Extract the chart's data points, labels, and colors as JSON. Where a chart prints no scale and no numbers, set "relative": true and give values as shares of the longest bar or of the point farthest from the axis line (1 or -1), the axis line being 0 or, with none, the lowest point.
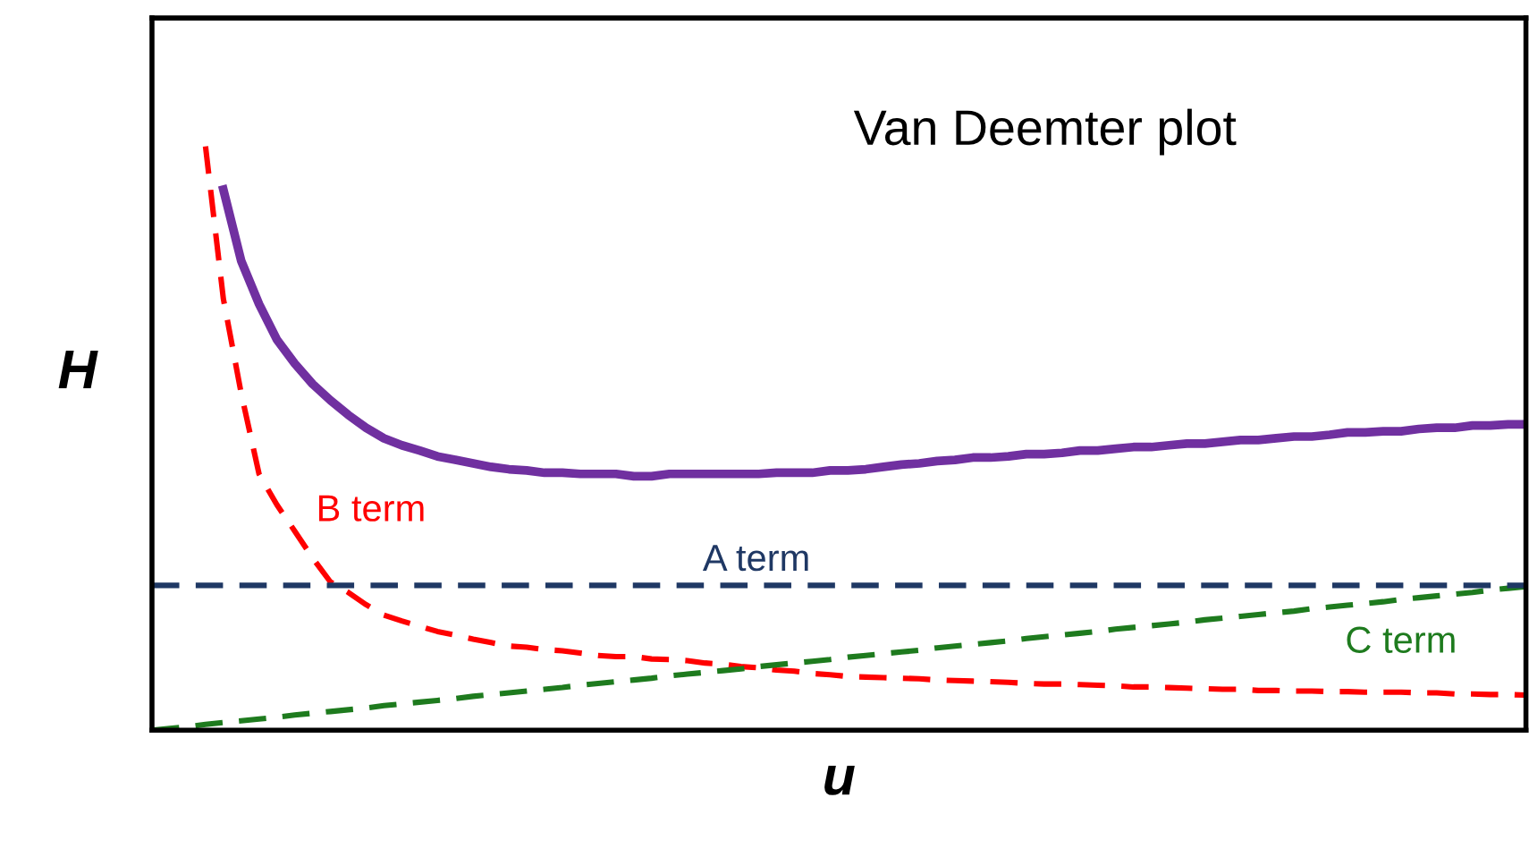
{
  "chart_data": {
    "type": "line",
    "title": "Van Deemter plot",
    "xlabel": "u",
    "ylabel": "H",
    "relative": true,
    "legend": false,
    "marker": "none",
    "categories": [
      null,
      null,
      null,
      null,
      null,
      null,
      null,
      null,
      null,
      null,
      null,
      null,
      null,
      null,
      null,
      null,
      null,
      null,
      null,
      null,
      null,
      null,
      null,
      null,
      null,
      null,
      null,
      null,
      null,
      null,
      null,
      null,
      null,
      null,
      null,
      null,
      null,
      null,
      null,
      null,
      null,
      null,
      null,
      null,
      null,
      null,
      null,
      null,
      null,
      null,
      null,
      null,
      null,
      null,
      null,
      null,
      null,
      null,
      null,
      null,
      null,
      null,
      null,
      null,
      null,
      null,
      null,
      null,
      null,
      null,
      null,
      null,
      null,
      null,
      null,
      null,
      null,
      null
    ],
    "series": [
      {
        "color": "#7030a0",
        "line_style": "solid",
        "values": [
          null,
          null,
          null,
          null,
          0.926,
          0.804,
          0.73,
          0.669,
          0.628,
          0.593,
          0.565,
          0.54,
          0.518,
          0.5,
          0.488,
          0.479,
          0.469,
          0.463,
          0.457,
          0.451,
          0.447,
          0.445,
          0.441,
          0.441,
          0.439,
          0.439,
          0.439,
          0.435,
          0.435,
          0.439,
          0.439,
          0.439,
          0.439,
          0.439,
          0.439,
          0.441,
          0.441,
          0.441,
          0.445,
          0.445,
          0.447,
          0.451,
          0.455,
          0.457,
          0.461,
          0.463,
          0.467,
          0.467,
          0.469,
          0.473,
          0.473,
          0.475,
          0.479,
          0.479,
          0.482,
          0.485,
          0.485,
          0.488,
          0.491,
          0.491,
          0.494,
          0.497,
          0.497,
          0.5,
          0.503,
          0.503,
          0.506,
          0.51,
          0.51,
          0.512,
          0.512,
          0.516,
          0.518,
          0.518,
          0.522,
          0.522,
          0.524,
          0.524
        ]
      },
      {
        "name": "B term",
        "color": "#ff0000",
        "line_style": "dashed",
        "values": [
          null,
          null,
          null,
          1,
          0.739,
          0.577,
          0.439,
          0.386,
          0.341,
          0.295,
          0.254,
          0.236,
          0.215,
          0.197,
          0.187,
          0.178,
          0.169,
          0.163,
          0.156,
          0.15,
          0.144,
          0.142,
          0.138,
          0.136,
          0.132,
          0.128,
          0.126,
          0.126,
          0.122,
          0.121,
          0.119,
          0.115,
          0.113,
          0.109,
          0.107,
          0.103,
          0.101,
          0.097,
          0.095,
          0.092,
          0.091,
          0.09,
          0.089,
          0.088,
          0.086,
          0.085,
          0.084,
          0.083,
          0.082,
          0.08,
          0.079,
          0.079,
          0.078,
          0.077,
          0.076,
          0.074,
          0.074,
          0.073,
          0.072,
          0.071,
          0.07,
          0.07,
          0.068,
          0.068,
          0.067,
          0.067,
          0.066,
          0.066,
          0.065,
          0.065,
          0.065,
          0.064,
          0.064,
          0.062,
          0.062,
          0.061,
          0.061,
          0.06
        ]
      },
      {
        "name": "C term",
        "color": "#1e7b1e",
        "line_style": "dashed",
        "values": [
          0,
          0.003,
          0.006,
          0.01,
          0.013,
          0.016,
          0.019,
          0.022,
          0.026,
          0.029,
          0.032,
          0.035,
          0.038,
          0.042,
          0.045,
          0.048,
          0.051,
          0.054,
          0.058,
          0.061,
          0.064,
          0.067,
          0.07,
          0.073,
          0.077,
          0.08,
          0.083,
          0.086,
          0.089,
          0.093,
          0.096,
          0.099,
          0.102,
          0.105,
          0.109,
          0.112,
          0.115,
          0.118,
          0.121,
          0.125,
          0.128,
          0.131,
          0.134,
          0.137,
          0.141,
          0.144,
          0.147,
          0.15,
          0.153,
          0.157,
          0.16,
          0.163,
          0.166,
          0.169,
          0.173,
          0.176,
          0.179,
          0.182,
          0.185,
          0.189,
          0.192,
          0.195,
          0.198,
          0.201,
          0.204,
          0.208,
          0.211,
          0.214,
          0.217,
          0.22,
          0.224,
          0.227,
          0.23,
          0.233,
          0.236,
          0.24,
          0.243,
          0.246
        ]
      }
    ],
    "ref_lines": [
      {
        "axis": "y",
        "value": 0.248,
        "label": "A term",
        "color": "#1f3864",
        "line_style": "dashed"
      }
    ]
  }
}
